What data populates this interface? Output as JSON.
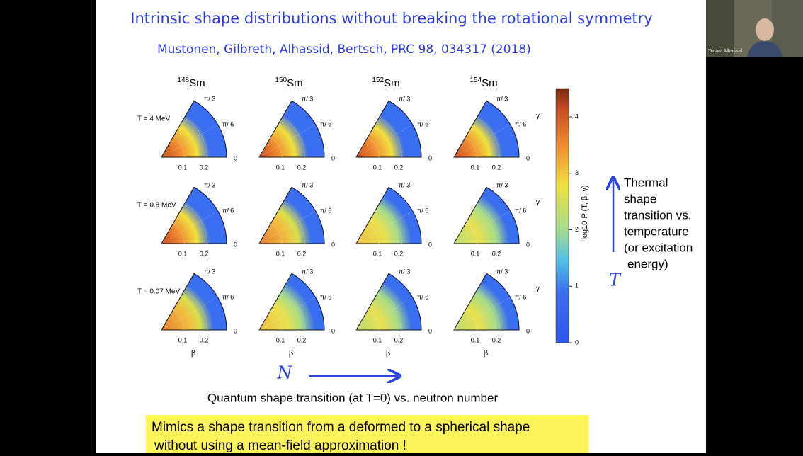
{
  "slide": {
    "title": "Intrinsic shape distributions without breaking the rotational symmetry",
    "citation": "Mustonen, Gilbreth, Alhassid, Bertsch, PRC 98, 034317 (2018)",
    "columns": [
      {
        "mass": "148",
        "element": "Sm"
      },
      {
        "mass": "150",
        "element": "Sm"
      },
      {
        "mass": "152",
        "element": "Sm"
      },
      {
        "mass": "154",
        "element": "Sm"
      }
    ],
    "rows": [
      "T = 4 MeV",
      "T = 0.8 MeV",
      "T = 0.07 MeV"
    ],
    "axis": {
      "gamma_top": "π/ 3",
      "gamma_mid": "π/ 6",
      "zero": "0",
      "beta_ticks": [
        "0.1",
        "0.2"
      ],
      "beta": "β",
      "gamma": "γ"
    },
    "colorbar": {
      "label": "log10 P (T, β, γ)",
      "ticks": [
        "0",
        "1",
        "2",
        "3",
        "4"
      ]
    },
    "side_note": [
      "Thermal",
      "shape",
      "transition vs.",
      "temperature",
      "(or excitation",
      "energy)"
    ],
    "side_symbol": "T",
    "bottom_symbol": "N",
    "caption": "Quantum shape transition (at T=0) vs. neutron number",
    "highlight": [
      "Mimics a shape transition from a deformed to a spherical shape",
      "without using a mean-field approximation !"
    ]
  },
  "video": {
    "name": "Yoram Alhassid"
  }
}
